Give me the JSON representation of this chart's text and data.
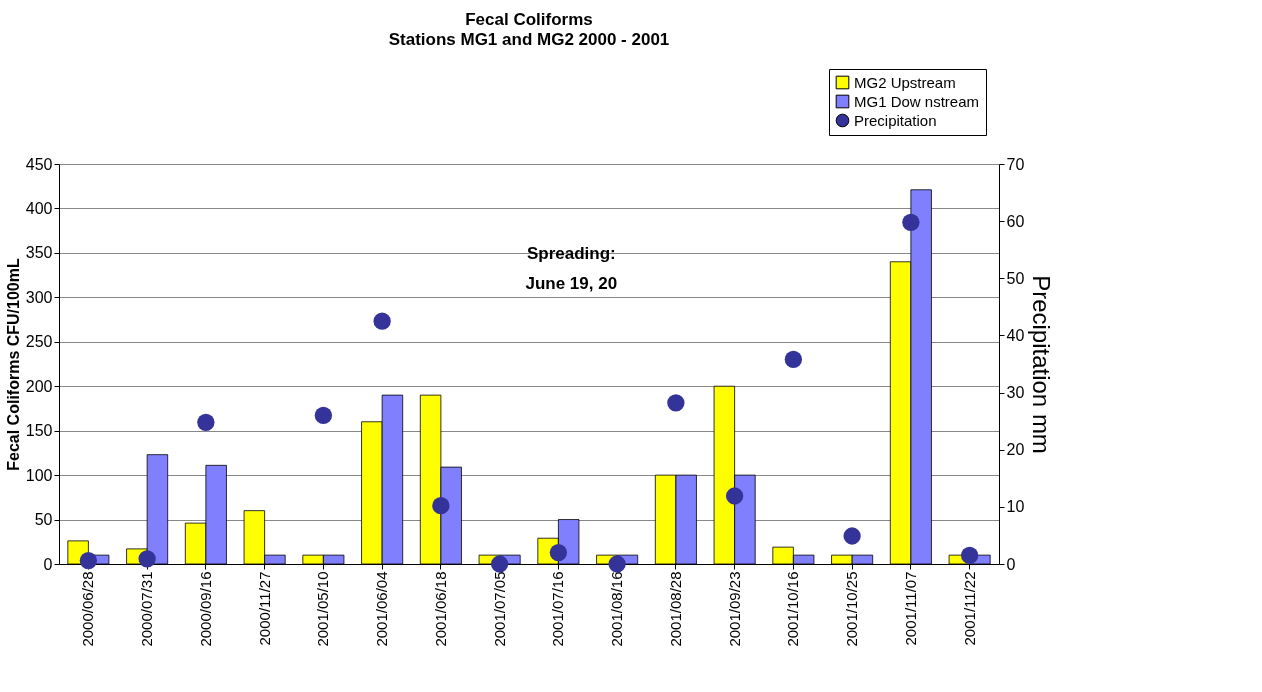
{
  "chart_data": {
    "type": "bar",
    "title": "Fecal Coliforms",
    "subtitle": "Stations MG1 and MG2  2000 - 2001",
    "ylabel": "Fecal Coliforms   CFU/100mL",
    "y2label": "Precipitation  mm",
    "categories": [
      "2000/06/28",
      "2000/07/31",
      "2000/09/16",
      "2000/11/27",
      "2001/05/10",
      "2001/06/04",
      "2001/06/18",
      "2001/07/05",
      "2001/07/16",
      "2001/08/16",
      "2001/08/28",
      "2001/09/23",
      "2001/10/16",
      "2001/10/25",
      "2001/11/07",
      "2001/11/22"
    ],
    "series": [
      {
        "name": "MG2 Upstream",
        "color": "#ffff00",
        "values": [
          26,
          17,
          46,
          60,
          10,
          160,
          190,
          10,
          29,
          10,
          100,
          200,
          19,
          10,
          340,
          10
        ]
      },
      {
        "name": "MG1 Dow nstream",
        "color": "#8080ff",
        "values": [
          10,
          123,
          111,
          10,
          10,
          190,
          109,
          10,
          50,
          10,
          100,
          100,
          10,
          10,
          421,
          10
        ]
      },
      {
        "name": "Precipitation",
        "color": "#333399",
        "type": "scatter",
        "axis": "y2",
        "marker": "circle",
        "values": [
          0.6,
          0.9,
          24.8,
          null,
          26,
          42.5,
          10.2,
          0,
          2,
          0,
          28.2,
          11.9,
          35.8,
          4.9,
          59.8,
          1.5
        ]
      }
    ],
    "ylim": [
      0,
      450
    ],
    "yticks": [
      0,
      50,
      100,
      150,
      200,
      250,
      300,
      350,
      400,
      450
    ],
    "y2lim": [
      0,
      70
    ],
    "y2ticks": [
      0,
      10,
      20,
      30,
      40,
      50,
      60,
      70
    ],
    "annotations": [
      "Spreading:",
      "June 19, 20"
    ],
    "grid": "y",
    "legend": "top right"
  }
}
